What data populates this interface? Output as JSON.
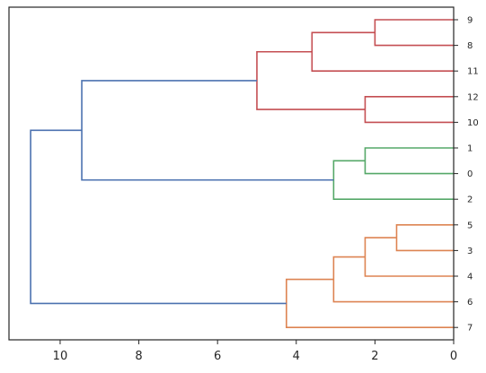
{
  "chart_data": {
    "type": "dendrogram",
    "orientation": "left",
    "title": "",
    "xlabel": "",
    "ylabel": "",
    "xlim": [
      11.3,
      0
    ],
    "x_ticks": [
      "10",
      "8",
      "6",
      "4",
      "2",
      "0"
    ],
    "x_tick_values": [
      10,
      8,
      6,
      4,
      2,
      0
    ],
    "leaves_top_to_bottom": [
      "9",
      "8",
      "11",
      "12",
      "10",
      "1",
      "0",
      "2",
      "5",
      "3",
      "4",
      "6",
      "7"
    ],
    "colors": {
      "red": "#c44e52",
      "green": "#55a868",
      "orange": "#dd8452",
      "blue": "#4c72b0",
      "axis": "#262626"
    },
    "merges": [
      {
        "id": "c1",
        "left": "9",
        "right": "8",
        "height": 2.0,
        "color": "red"
      },
      {
        "id": "c2",
        "left": "c1",
        "right": "11",
        "height": 3.6,
        "color": "red"
      },
      {
        "id": "c3",
        "left": "12",
        "right": "10",
        "height": 2.25,
        "color": "red"
      },
      {
        "id": "c4",
        "left": "c2",
        "right": "c3",
        "height": 5.0,
        "color": "red"
      },
      {
        "id": "c5",
        "left": "1",
        "right": "0",
        "height": 2.25,
        "color": "green"
      },
      {
        "id": "c6",
        "left": "c5",
        "right": "2",
        "height": 3.05,
        "color": "green"
      },
      {
        "id": "c7",
        "left": "c4",
        "right": "c6",
        "height": 9.45,
        "color": "blue"
      },
      {
        "id": "c8",
        "left": "5",
        "right": "3",
        "height": 1.45,
        "color": "orange"
      },
      {
        "id": "c9",
        "left": "c8",
        "right": "4",
        "height": 2.25,
        "color": "orange"
      },
      {
        "id": "c10",
        "left": "c9",
        "right": "6",
        "height": 3.05,
        "color": "orange"
      },
      {
        "id": "c11",
        "left": "c10",
        "right": "7",
        "height": 4.25,
        "color": "orange"
      },
      {
        "id": "c12",
        "left": "c7",
        "right": "c11",
        "height": 10.75,
        "color": "blue"
      }
    ]
  }
}
